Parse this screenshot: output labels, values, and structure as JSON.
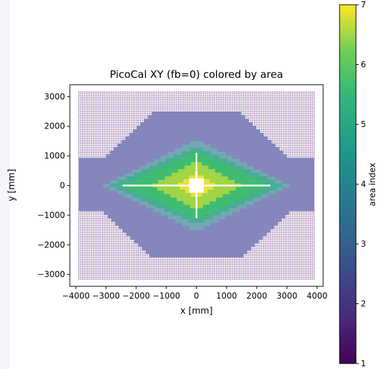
{
  "chart_data": {
    "type": "heatmap",
    "title": "PicoCal XY (fb=0) colored by area",
    "xlabel": "x [mm]",
    "ylabel": "y [mm]",
    "xlim": [
      -4200,
      4200
    ],
    "ylim": [
      -3400,
      3400
    ],
    "xticks": [
      -4000,
      -3000,
      -2000,
      -1000,
      0,
      1000,
      2000,
      3000,
      4000
    ],
    "xtick_labels": [
      "−4000",
      "−3000",
      "−2000",
      "−1000",
      "0",
      "1000",
      "2000",
      "3000",
      "4000"
    ],
    "yticks": [
      3000,
      2000,
      1000,
      0,
      -1000,
      -2000,
      -3000
    ],
    "ytick_labels": [
      "3000",
      "2000",
      "1000",
      "0",
      "−1000",
      "−2000",
      "−3000"
    ],
    "outer_extent": {
      "x": [
        -3900,
        3900
      ],
      "y": [
        -3150,
        3150
      ]
    },
    "regions": [
      {
        "area": 1,
        "description": "outer grid of dotted cells",
        "x_half_width_at_y0": 3900,
        "y_half_height_at_x0": 3150
      },
      {
        "area": 2,
        "x_half_width_at_y0": 3900,
        "y_half_height_at_x0": 2420
      },
      {
        "area": 3,
        "x_half_width_at_y0": 3100,
        "y_half_height_at_x0": 1500
      },
      {
        "area": 4,
        "x_half_width_at_y0": 2900,
        "y_half_height_at_x0": 1250
      },
      {
        "area": 5,
        "x_half_width_at_y0": 2450,
        "y_half_height_at_x0": 1100
      },
      {
        "area": 6,
        "x_half_width_at_y0": 1500,
        "y_half_height_at_x0": 770
      },
      {
        "area": 7,
        "x_half_width_at_y0": 680,
        "y_half_height_at_x0": 380
      }
    ],
    "beam_hole": {
      "x": [
        -240,
        240
      ],
      "y": [
        -240,
        240
      ]
    },
    "gap_lines": {
      "horizontal_x": [
        -2450,
        2450
      ],
      "vertical_y": [
        -1100,
        1100
      ]
    },
    "colorbar": {
      "label": "area index",
      "range": [
        1,
        7
      ],
      "ticks": [
        1,
        2,
        3,
        4,
        5,
        6,
        7
      ],
      "tick_labels": [
        "1",
        "2",
        "3",
        "4",
        "5",
        "6",
        "7"
      ],
      "colormap": "viridis"
    }
  },
  "colors": {
    "area_1": "#6d3c85",
    "area_2": "#8486bc",
    "area_3": "#75a6b4",
    "area_4": "#47ad93",
    "area_5": "#3fbc72",
    "area_6": "#a0d545",
    "area_7": "#ebe13a",
    "gap": "#ffffff",
    "background": "#ffffff"
  }
}
